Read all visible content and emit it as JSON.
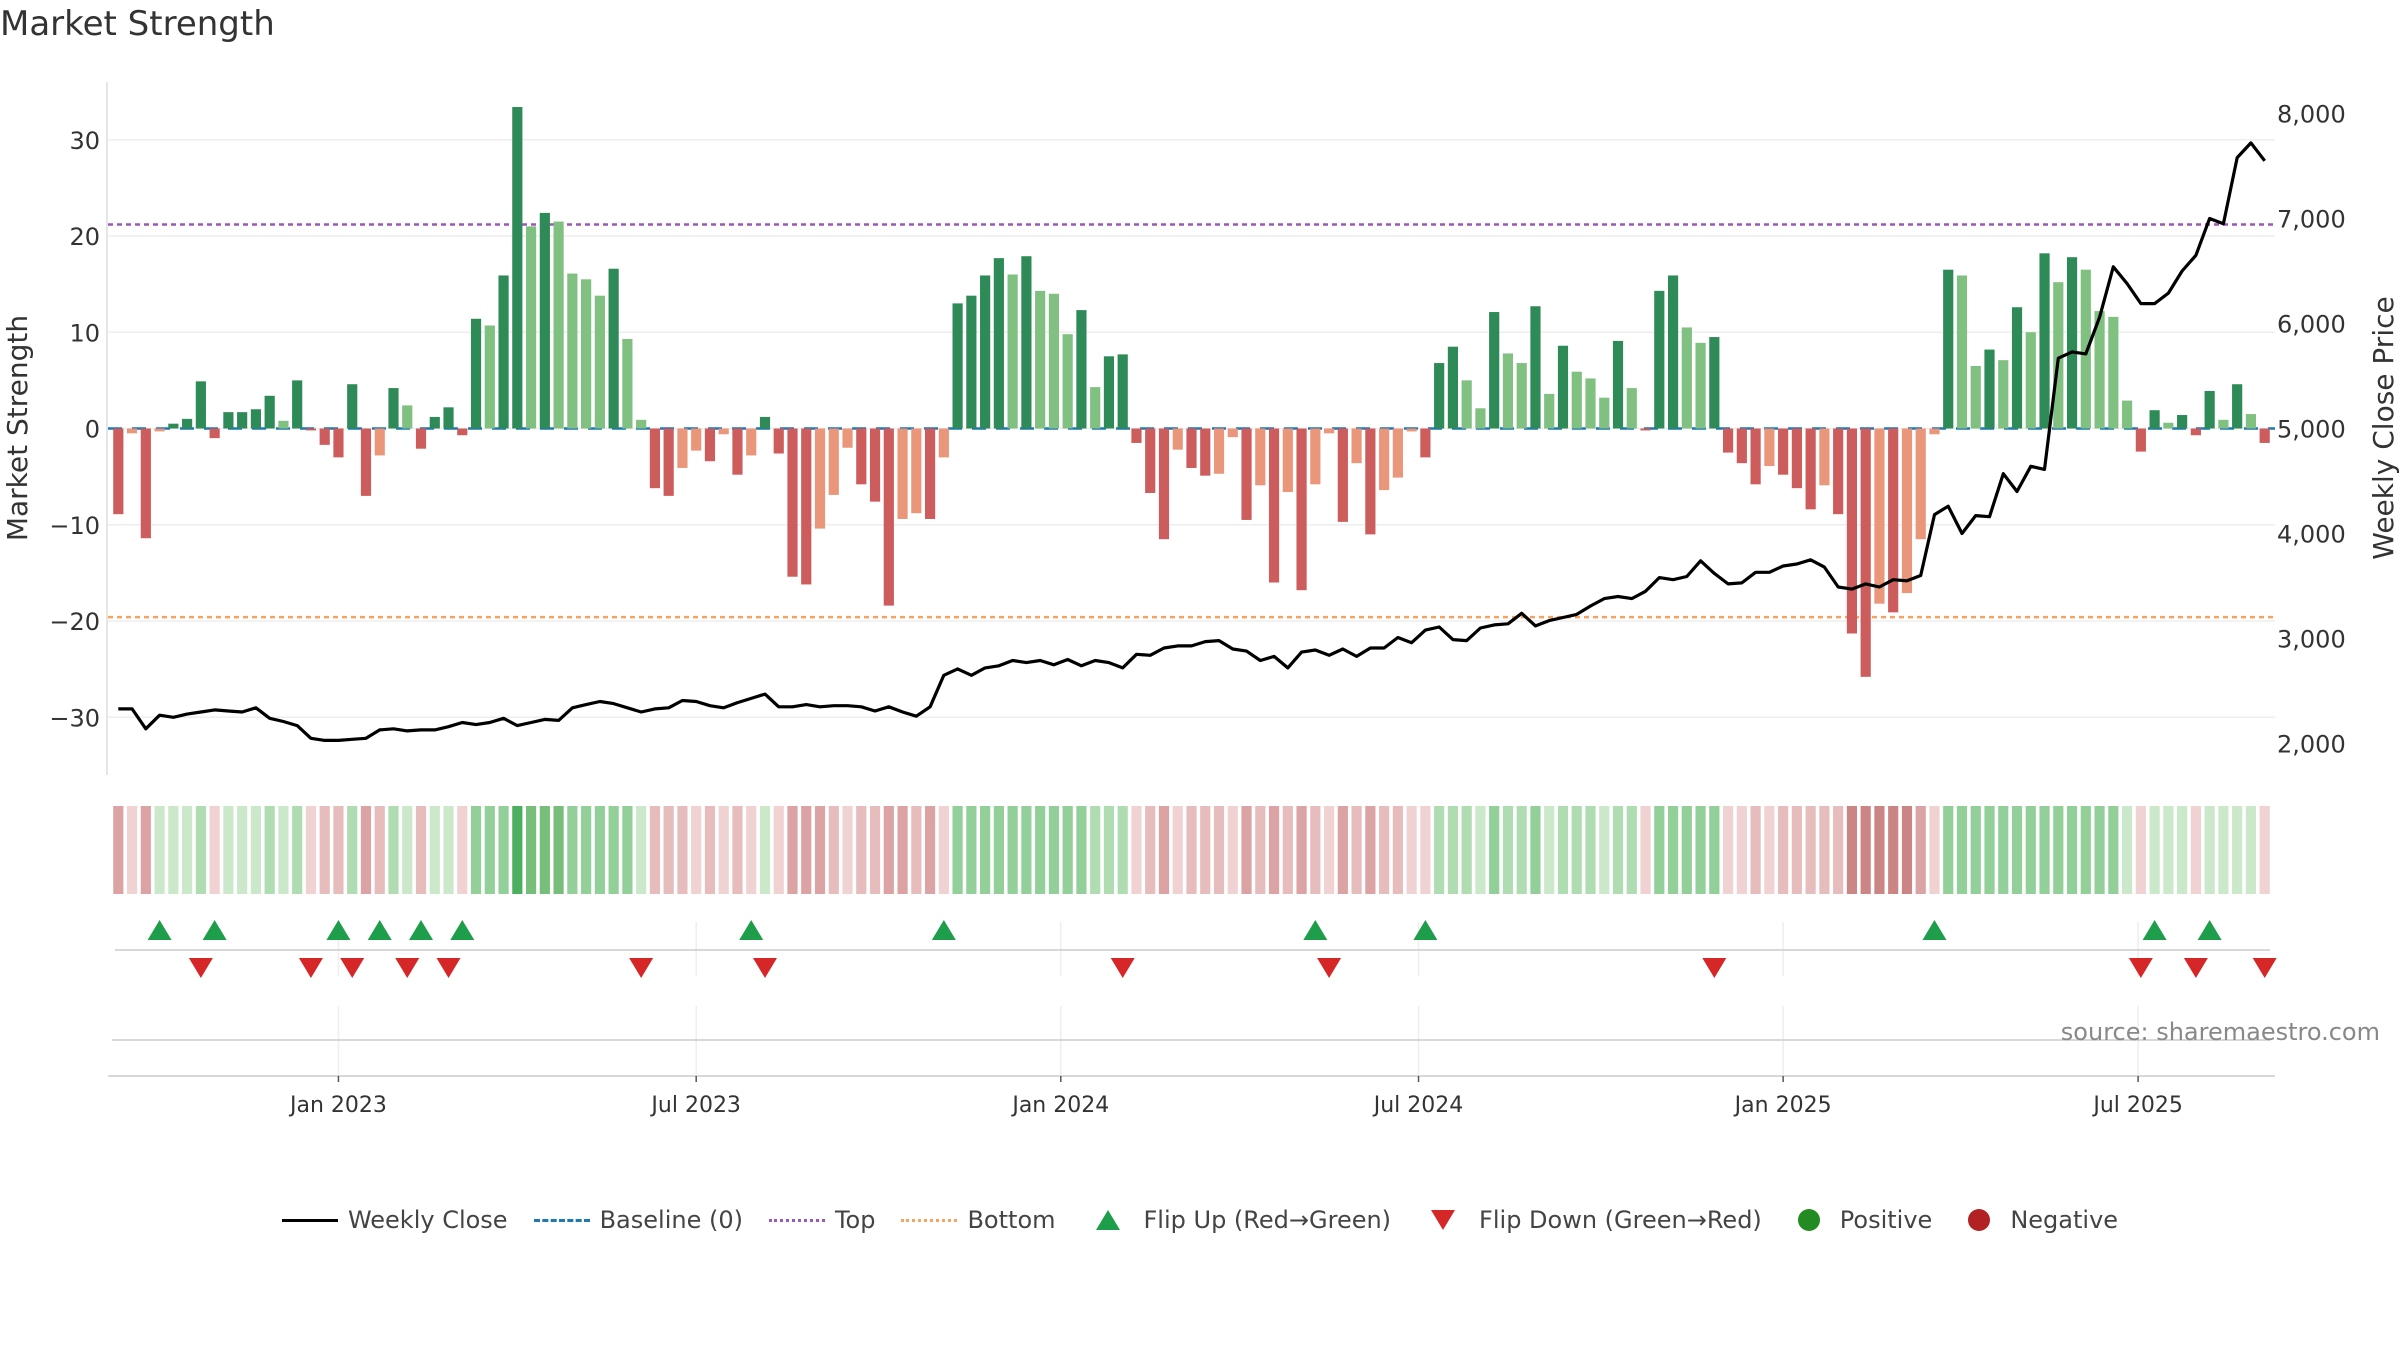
{
  "title": "Market Strength",
  "source_text": "source: sharemaestro.com",
  "colors": {
    "green_dark": "#2e8b57",
    "green_light": "#80c080",
    "red_dark": "#cd5c5c",
    "red_light": "#e9967a",
    "price_line": "#000000",
    "baseline": "#1f77b4",
    "top_line": "#9b59b6",
    "bottom_line": "#f4a460",
    "flip_up": "#1e9e4a",
    "flip_down": "#d62728",
    "positive": "#228b22",
    "negative": "#b22222"
  },
  "legend": [
    {
      "label": "Weekly Close",
      "symbol": "line-solid",
      "color": "#000000"
    },
    {
      "label": "Baseline (0)",
      "symbol": "line-dashed",
      "color": "#1f77b4"
    },
    {
      "label": "Top",
      "symbol": "line-dotted",
      "color": "#9b59b6"
    },
    {
      "label": "Bottom",
      "symbol": "line-dotted",
      "color": "#f4a460"
    },
    {
      "label": "Flip Up (Red→Green)",
      "symbol": "triangle-up",
      "color": "#1e9e4a"
    },
    {
      "label": "Flip Down (Green→Red)",
      "symbol": "triangle-down",
      "color": "#d62728"
    },
    {
      "label": "Positive",
      "symbol": "circle",
      "color": "#228b22"
    },
    {
      "label": "Negative",
      "symbol": "circle",
      "color": "#b22222"
    }
  ],
  "chart_data": {
    "type": "bar",
    "ylabel": "Market Strength",
    "y2label": "Weekly Close Price",
    "ylim": [
      -36,
      36
    ],
    "y2lim": [
      1700,
      8300
    ],
    "yticks": [
      -30,
      -20,
      -10,
      0,
      10,
      20,
      30
    ],
    "y2ticks": [
      2000,
      3000,
      4000,
      5000,
      6000,
      7000,
      8000
    ],
    "y2ticklabels": [
      "2,000",
      "3,000",
      "4,000",
      "5,000",
      "6,000",
      "7,000",
      "8,000"
    ],
    "xticks": [
      {
        "label": "Jan 2023",
        "week": 16
      },
      {
        "label": "Jul 2023",
        "week": 42
      },
      {
        "label": "Jan 2024",
        "week": 68.5
      },
      {
        "label": "Jul 2024",
        "week": 94.5
      },
      {
        "label": "Jan 2025",
        "week": 121
      },
      {
        "label": "Jul 2025",
        "week": 146.8
      }
    ],
    "top_level": 21.2,
    "bottom_level": -19.6,
    "strength": [
      -8.9,
      -0.5,
      -11.4,
      -0.3,
      0.5,
      1.0,
      4.9,
      -1.0,
      1.7,
      1.7,
      2.0,
      3.4,
      0.8,
      5.0,
      -0.2,
      -1.7,
      -3.0,
      4.6,
      -7.0,
      -2.8,
      4.2,
      2.4,
      -2.1,
      1.2,
      2.2,
      -0.7,
      11.4,
      10.7,
      15.9,
      33.4,
      21.0,
      22.4,
      21.5,
      16.1,
      15.5,
      13.8,
      16.6,
      9.3,
      0.9,
      -6.2,
      -7.0,
      -4.1,
      -2.3,
      -3.4,
      -0.6,
      -4.8,
      -2.8,
      1.2,
      -2.6,
      -15.4,
      -16.2,
      -10.4,
      -6.9,
      -2.0,
      -5.8,
      -7.6,
      -18.4,
      -9.4,
      -8.8,
      -9.4,
      -3.0,
      13.0,
      13.8,
      15.9,
      17.7,
      16.0,
      17.9,
      14.3,
      14.0,
      9.8,
      12.3,
      4.3,
      7.5,
      7.7,
      -1.5,
      -6.7,
      -11.5,
      -2.2,
      -4.1,
      -4.9,
      -4.7,
      -0.9,
      -9.5,
      -5.9,
      -16.0,
      -6.6,
      -16.8,
      -5.8,
      -0.5,
      -9.7,
      -3.6,
      -11.0,
      -6.4,
      -5.1,
      -0.3,
      -3.0,
      6.8,
      8.5,
      5.0,
      2.1,
      12.1,
      7.8,
      6.8,
      12.7,
      3.6,
      8.6,
      5.9,
      5.2,
      3.2,
      9.1,
      4.2,
      -0.2,
      14.3,
      15.9,
      10.5,
      8.9,
      9.5,
      -2.5,
      -3.6,
      -5.8,
      -3.9,
      -4.8,
      -6.2,
      -8.4,
      -5.9,
      -8.9,
      -21.3,
      -25.8,
      -18.2,
      -19.1,
      -17.1,
      -11.5,
      -0.6,
      16.5,
      15.9,
      6.5,
      8.2,
      7.1,
      12.6,
      10.0,
      18.2,
      15.2,
      17.8,
      16.5,
      12.2,
      11.6,
      2.9,
      -2.4,
      1.9,
      0.6,
      1.4,
      -0.7,
      3.9,
      0.9,
      4.6,
      1.5,
      -1.5
    ],
    "close": [
      2330,
      2330,
      2140,
      2270,
      2250,
      2280,
      2300,
      2320,
      2310,
      2300,
      2340,
      2240,
      2210,
      2170,
      2050,
      2030,
      2030,
      2040,
      2050,
      2130,
      2140,
      2120,
      2130,
      2130,
      2160,
      2200,
      2180,
      2200,
      2240,
      2170,
      2200,
      2230,
      2220,
      2340,
      2370,
      2400,
      2380,
      2340,
      2300,
      2330,
      2340,
      2410,
      2400,
      2360,
      2340,
      2390,
      2430,
      2470,
      2350,
      2350,
      2370,
      2350,
      2360,
      2360,
      2350,
      2310,
      2350,
      2300,
      2260,
      2350,
      2650,
      2710,
      2650,
      2720,
      2740,
      2790,
      2770,
      2790,
      2750,
      2800,
      2740,
      2790,
      2770,
      2720,
      2850,
      2840,
      2910,
      2930,
      2930,
      2970,
      2980,
      2900,
      2880,
      2790,
      2830,
      2720,
      2870,
      2890,
      2840,
      2900,
      2830,
      2910,
      2910,
      3010,
      2960,
      3080,
      3110,
      2990,
      2980,
      3100,
      3130,
      3140,
      3240,
      3120,
      3170,
      3200,
      3230,
      3310,
      3380,
      3400,
      3380,
      3450,
      3580,
      3560,
      3590,
      3740,
      3620,
      3520,
      3530,
      3630,
      3630,
      3690,
      3710,
      3750,
      3680,
      3490,
      3470,
      3520,
      3490,
      3560,
      3550,
      3600,
      4180,
      4260,
      4000,
      4170,
      4160,
      4570,
      4400,
      4640,
      4610,
      5670,
      5730,
      5710,
      6060,
      6540,
      6380,
      6190,
      6190,
      6290,
      6500,
      6650,
      7000,
      6950,
      7580,
      7720,
      7550
    ],
    "strength_strip": [
      -3,
      -1,
      -3,
      1,
      1,
      1,
      2,
      -1,
      1,
      1,
      1,
      2,
      1,
      2,
      -1,
      -2,
      -2,
      2,
      -3,
      -2,
      2,
      1,
      -2,
      1,
      1,
      -1,
      3,
      3,
      3,
      5,
      4,
      4,
      4,
      3,
      3,
      3,
      3,
      3,
      1,
      -2,
      -2,
      -2,
      -1,
      -2,
      -1,
      -2,
      -1,
      1,
      -1,
      -3,
      -3,
      -3,
      -2,
      -1,
      -2,
      -2,
      -3,
      -3,
      -2,
      -3,
      -1,
      3,
      3,
      3,
      3,
      3,
      3,
      3,
      3,
      3,
      3,
      2,
      2,
      2,
      -1,
      -2,
      -3,
      -1,
      -2,
      -2,
      -2,
      -1,
      -3,
      -2,
      -3,
      -2,
      -3,
      -2,
      -1,
      -3,
      -2,
      -3,
      -2,
      -2,
      -1,
      -1,
      2,
      2,
      2,
      1,
      3,
      2,
      2,
      3,
      1,
      2,
      2,
      2,
      1,
      2,
      2,
      -1,
      3,
      3,
      3,
      3,
      3,
      -1,
      -1,
      -2,
      -1,
      -2,
      -2,
      -2,
      -2,
      -2,
      -4,
      -4,
      -4,
      -4,
      -4,
      -3,
      -1,
      3,
      3,
      3,
      3,
      3,
      3,
      3,
      3,
      3,
      3,
      3,
      3,
      3,
      1,
      -1,
      1,
      1,
      1,
      -1,
      1,
      1,
      1,
      1,
      -1
    ],
    "flip_up_weeks": [
      3,
      7,
      16,
      19,
      22,
      25,
      46,
      60,
      87,
      95,
      132,
      148,
      152
    ],
    "flip_down_weeks": [
      6,
      14,
      17,
      21,
      24,
      38,
      47,
      73,
      88,
      116,
      147,
      151,
      156
    ]
  }
}
